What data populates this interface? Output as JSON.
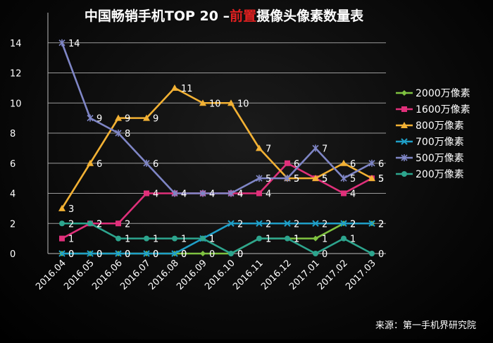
{
  "chart_data": {
    "type": "line",
    "title_part1": "中国畅销手机TOP 20 –",
    "title_part2": "前置",
    "title_part3": "摄像头像素数量表",
    "source": "来源：第一手机界研究院",
    "categories": [
      "2016.04",
      "2016.05",
      "2016.06",
      "2016.07",
      "2016.08",
      "2016.09",
      "2016.10",
      "2016.11",
      "2016.12",
      "2017.01",
      "2017.02",
      "2017.03"
    ],
    "ylim": [
      0,
      16
    ],
    "yticks": [
      0,
      2,
      4,
      6,
      8,
      10,
      12,
      14
    ],
    "grid": true,
    "legend_position": "right",
    "series": [
      {
        "name": "2000万像素",
        "color": "#7fc241",
        "marker": "diamond",
        "values": [
          0,
          0,
          0,
          0,
          0,
          0,
          0,
          1,
          1,
          1,
          2,
          2
        ]
      },
      {
        "name": "1600万像素",
        "color": "#e0307a",
        "marker": "square",
        "values": [
          1,
          2,
          2,
          4,
          4,
          4,
          4,
          4,
          6,
          5,
          4,
          5
        ]
      },
      {
        "name": "800万像素",
        "color": "#f2b134",
        "marker": "triangle",
        "values": [
          3,
          6,
          9,
          9,
          11,
          10,
          10,
          7,
          5,
          5,
          6,
          5
        ]
      },
      {
        "name": "700万像素",
        "color": "#1f9fc8",
        "marker": "x",
        "values": [
          0,
          0,
          0,
          0,
          0,
          1,
          2,
          2,
          2,
          2,
          2,
          2
        ]
      },
      {
        "name": "500万像素",
        "color": "#7f86c6",
        "marker": "star",
        "values": [
          14,
          9,
          8,
          6,
          4,
          4,
          4,
          5,
          5,
          7,
          5,
          6
        ]
      },
      {
        "name": "200万像素",
        "color": "#2da58e",
        "marker": "circle",
        "values": [
          2,
          2,
          1,
          1,
          1,
          1,
          0,
          1,
          1,
          0,
          1,
          0
        ]
      }
    ]
  }
}
